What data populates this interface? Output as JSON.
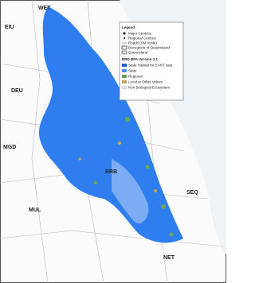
{
  "legend": {
    "title": "Legend",
    "items": [
      "Major Centres",
      "Regional Centres",
      "Roads (SM scale)",
      "Bioregions of Queensland",
      "Queensland"
    ],
    "section_title": "BRD BPA Version 2.1",
    "classes": [
      "State Habitat for EVNT taxa",
      "State",
      "Regional",
      "Local or Other Values",
      "Non Biological Ecosystem"
    ]
  },
  "regions": [
    "WET",
    "EIU",
    "DEU",
    "MGD",
    "MUL",
    "BRB",
    "SEQ",
    "NET"
  ]
}
